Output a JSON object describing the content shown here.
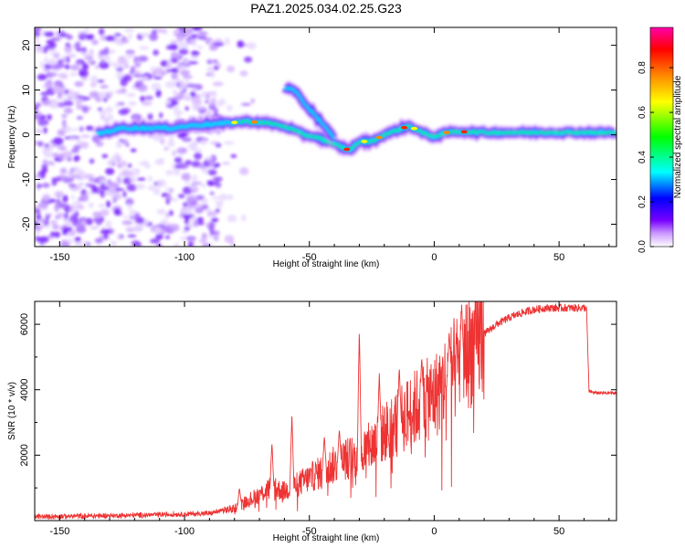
{
  "title": "PAZ1.2025.034.02.25.G23",
  "chart_data": [
    {
      "type": "heatmap",
      "xlabel": "Height of straight line (km)",
      "ylabel": "Frequency (Hz)",
      "xlim": [
        -160,
        73
      ],
      "ylim": [
        -25,
        24
      ],
      "xticks": [
        -150,
        -100,
        -50,
        0,
        50
      ],
      "yticks": [
        -20,
        -10,
        0,
        10,
        20
      ],
      "colorbar": {
        "label": "Normalized spectral amplitude",
        "range": [
          0,
          0.98
        ],
        "ticks": [
          0.0,
          0.2,
          0.4,
          0.6,
          0.8
        ],
        "colors": [
          "#ffffff",
          "#cc99ff",
          "#7700ff",
          "#0000ff",
          "#00ffff",
          "#00ff00",
          "#ffff00",
          "#ff8800",
          "#ff0000",
          "#ff00aa"
        ]
      },
      "ridge": {
        "description_units": "frequency Hz vs height km",
        "x": [
          -135,
          -125,
          -115,
          -105,
          -95,
          -85,
          -75,
          -65,
          -58,
          -52,
          -47,
          -43,
          -38,
          -34,
          -30,
          -25,
          -20,
          -15,
          -10,
          -5,
          0,
          5,
          10,
          20,
          40,
          60,
          73
        ],
        "y": [
          0.2,
          1.5,
          1.5,
          1.5,
          2.2,
          2.5,
          3.0,
          2.5,
          1.5,
          0.0,
          -0.5,
          -1.5,
          -2.5,
          -3.5,
          -1.5,
          -1.5,
          0.0,
          1.0,
          2.0,
          0.5,
          -0.5,
          0.5,
          0.7,
          0.5,
          0.5,
          0.5,
          0.5
        ]
      },
      "secondary_branch": {
        "x": [
          -60,
          -56,
          -52,
          -48,
          -44,
          -40
        ],
        "y": [
          10.5,
          10.0,
          7.0,
          4.5,
          2.0,
          -1.0
        ]
      }
    },
    {
      "type": "line",
      "xlabel": "Height of straight line (km)",
      "ylabel": "SNR (10 * v/v)",
      "xlim": [
        -160,
        73
      ],
      "ylim": [
        0,
        6700
      ],
      "xticks": [
        -150,
        -100,
        -50,
        0,
        50
      ],
      "yticks": [
        2000,
        4000,
        6000
      ],
      "color": "#ee3333",
      "envelope": {
        "x": [
          -160,
          -130,
          -110,
          -90,
          -80,
          -75,
          -70,
          -65,
          -60,
          -55,
          -50,
          -45,
          -40,
          -35,
          -30,
          -25,
          -20,
          -15,
          -10,
          -5,
          0,
          5,
          10,
          15,
          20,
          25,
          30,
          35,
          40,
          45,
          50,
          55,
          60,
          61,
          62,
          65,
          73
        ],
        "y": [
          120,
          150,
          180,
          220,
          380,
          600,
          800,
          1000,
          900,
          1100,
          1300,
          1500,
          1700,
          1900,
          2000,
          2300,
          2700,
          3000,
          3300,
          3600,
          3800,
          4300,
          4800,
          5300,
          5700,
          6000,
          6200,
          6350,
          6450,
          6500,
          6500,
          6500,
          6500,
          6500,
          3950,
          3900,
          3900
        ]
      },
      "spikes": [
        {
          "x": -78,
          "y": 1000
        },
        {
          "x": -65,
          "y": 2400
        },
        {
          "x": -57,
          "y": 3300
        },
        {
          "x": -44,
          "y": 2600
        },
        {
          "x": -38,
          "y": 2800
        },
        {
          "x": -30,
          "y": 5900
        },
        {
          "x": -22,
          "y": 4500
        },
        {
          "x": -14,
          "y": 4700
        },
        {
          "x": -5,
          "y": 5000
        },
        {
          "x": 6,
          "y": 5800
        },
        {
          "x": 11,
          "y": 6600
        }
      ]
    }
  ]
}
